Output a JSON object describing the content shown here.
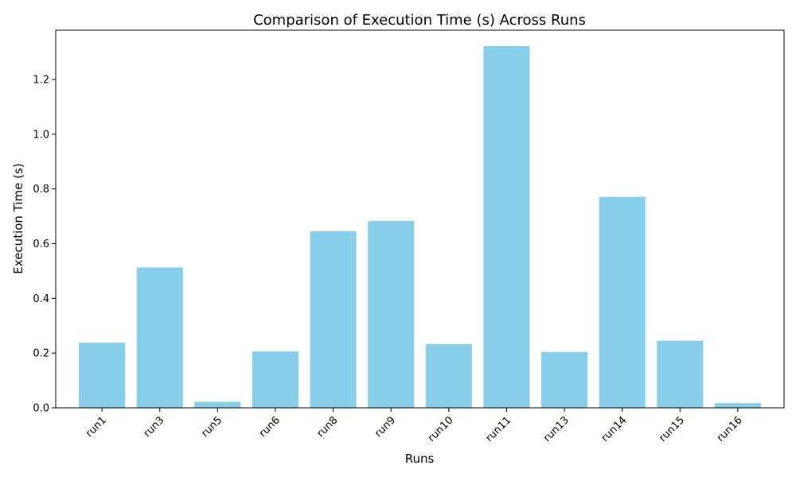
{
  "chart_data": {
    "type": "bar",
    "title": "Comparison of Execution Time (s) Across Runs",
    "xlabel": "Runs",
    "ylabel": "Execution Time (s)",
    "categories": [
      "run1",
      "run3",
      "run5",
      "run6",
      "run8",
      "run9",
      "run10",
      "run11",
      "run13",
      "run14",
      "run15",
      "run16"
    ],
    "values": [
      0.238,
      0.513,
      0.022,
      0.206,
      0.645,
      0.683,
      0.233,
      1.322,
      0.204,
      0.771,
      0.245,
      0.017
    ],
    "ylim": [
      0,
      1.38
    ],
    "yticks": [
      "0.0",
      "0.2",
      "0.4",
      "0.6",
      "0.8",
      "1.0",
      "1.2"
    ],
    "bar_color": "#87ceeb",
    "grid": false,
    "legend": "none"
  }
}
